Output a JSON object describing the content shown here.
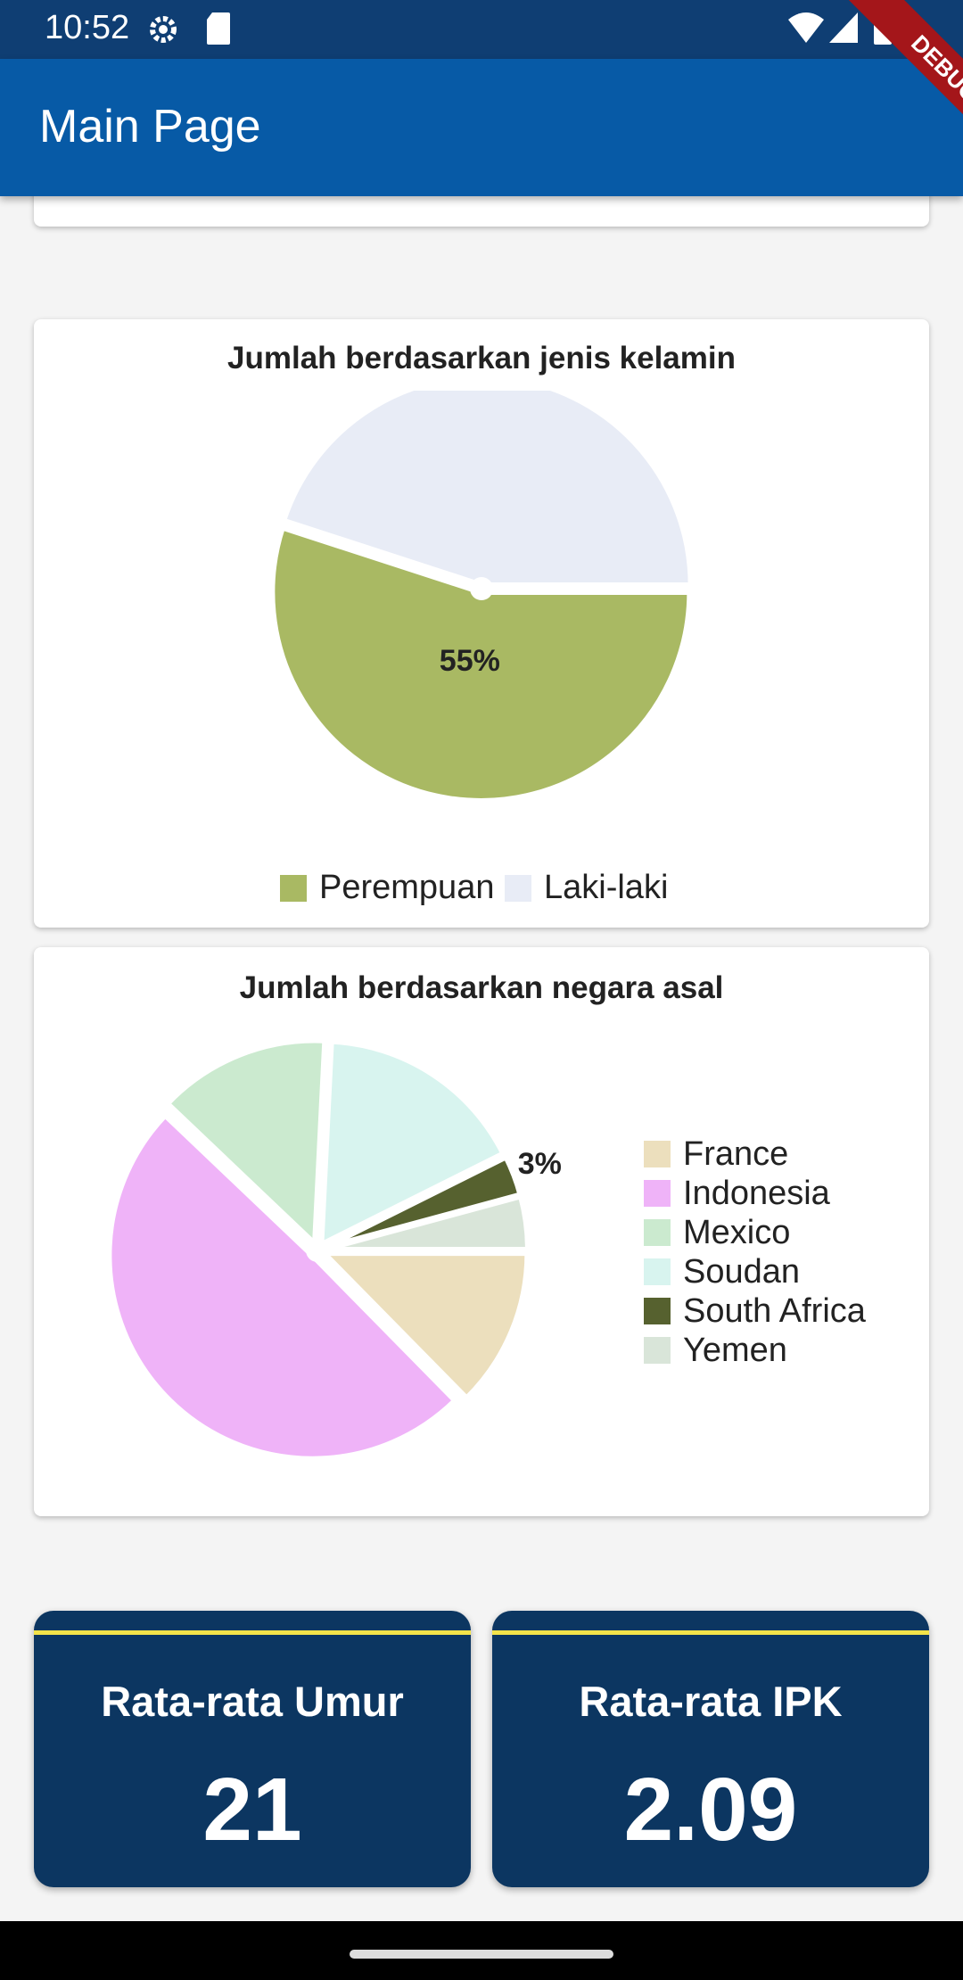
{
  "status_bar": {
    "time": "10:52"
  },
  "app_bar": {
    "title": "Main Page",
    "debug_label": "DEBUG"
  },
  "gender_chart": {
    "title": "Jumlah berdasarkan jenis kelamin",
    "chart_data": {
      "type": "pie",
      "title": "Jumlah berdasarkan jenis kelamin",
      "categories": [
        "Perempuan",
        "Laki-laki"
      ],
      "values": [
        55,
        45
      ],
      "colors": [
        "#a9b963",
        "#e8ecf6"
      ],
      "data_labels": [
        "55%",
        ""
      ],
      "legend": "bottom"
    }
  },
  "country_chart": {
    "title": "Jumlah berdasarkan negara asal",
    "chart_data": {
      "type": "pie",
      "title": "Jumlah berdasarkan negara asal",
      "categories": [
        "France",
        "Indonesia",
        "Mexico",
        "Soudan",
        "South Africa",
        "Yemen"
      ],
      "values": [
        12,
        47,
        13,
        16,
        3,
        4
      ],
      "colors": [
        "#ecdfbd",
        "#efb3f8",
        "#cbeacf",
        "#d8f4ef",
        "#56612f",
        "#d9e5d9"
      ],
      "data_labels": [
        "",
        "",
        "",
        "",
        "3%",
        ""
      ],
      "legend": "right"
    }
  },
  "stats": [
    {
      "label": "Rata-rata Umur",
      "value": "21"
    },
    {
      "label": "Rata-rata IPK",
      "value": "2.09"
    }
  ]
}
